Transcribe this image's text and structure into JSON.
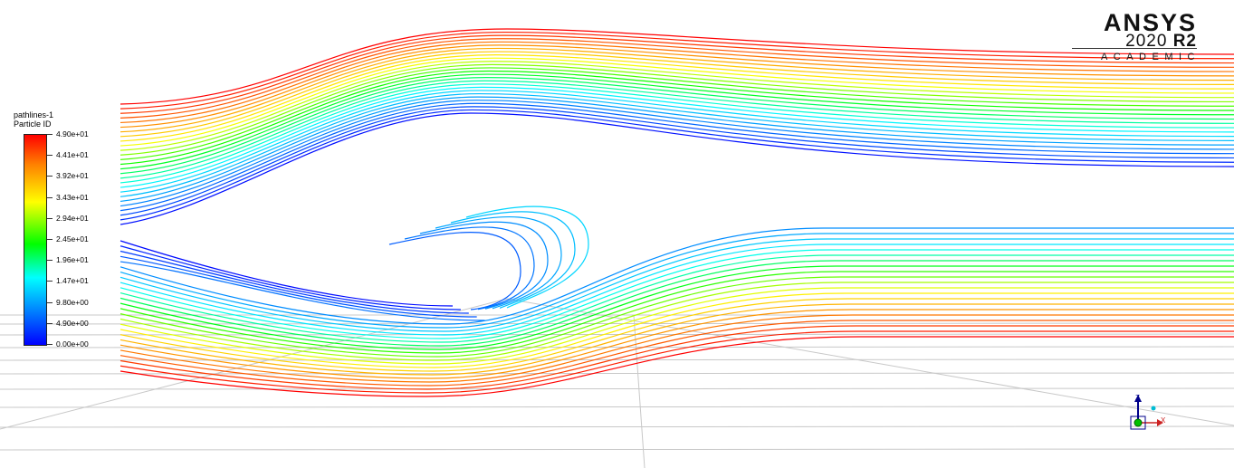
{
  "legend": {
    "title_line1": "pathlines-1",
    "title_line2": "Particle ID",
    "labels": [
      "4.90e+01",
      "4.41e+01",
      "3.92e+01",
      "3.43e+01",
      "2.94e+01",
      "2.45e+01",
      "1.96e+01",
      "1.47e+01",
      "9.80e+00",
      "4.90e+00",
      "0.00e+00"
    ]
  },
  "logo": {
    "name": "ANSYS",
    "version_year": "2020",
    "version_release": "R2",
    "edition": "ACADEMIC"
  },
  "axes": {
    "z_label": "Z",
    "x_label": "X"
  },
  "colors": {
    "colormap": [
      "#0000ff",
      "#0080ff",
      "#00ffff",
      "#00ff00",
      "#ffff00",
      "#ff8000",
      "#ff0000"
    ]
  }
}
